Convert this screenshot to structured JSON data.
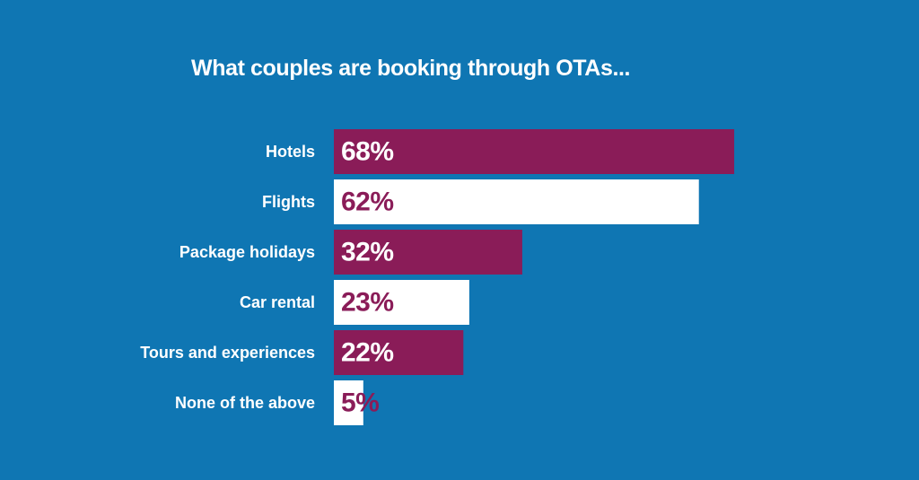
{
  "colors": {
    "background": "#0f76b3",
    "bar_primary": "#8a1c58",
    "bar_secondary": "#ffffff",
    "title_text": "#ffffff",
    "label_text": "#ffffff"
  },
  "chart_data": {
    "type": "bar",
    "orientation": "horizontal",
    "title": "What couples are booking through OTAs...",
    "categories": [
      "Hotels",
      "Flights",
      "Package holidays",
      "Car rental",
      "Tours and experiences",
      "None of the above"
    ],
    "values": [
      68,
      62,
      32,
      23,
      22,
      5
    ],
    "value_labels": [
      "68%",
      "62%",
      "32%",
      "23%",
      "22%",
      "5%"
    ],
    "unit": "%",
    "bar_colors": [
      "#8a1c58",
      "#ffffff",
      "#8a1c58",
      "#ffffff",
      "#8a1c58",
      "#ffffff"
    ],
    "value_label_colors": [
      "#ffffff",
      "#8a1c58",
      "#ffffff",
      "#8a1c58",
      "#ffffff",
      "#8a1c58"
    ],
    "xlabel": "",
    "ylabel": "",
    "grid": false,
    "legend": false
  }
}
